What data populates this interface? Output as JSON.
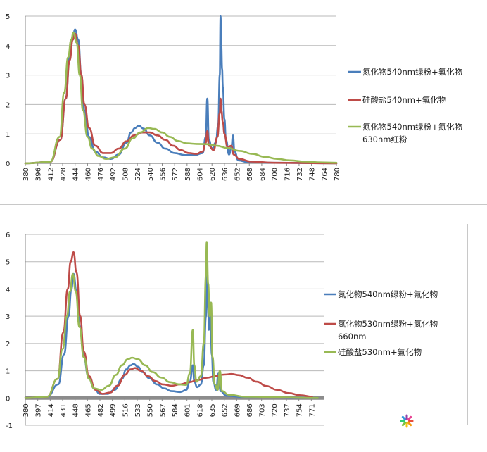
{
  "chart_data": [
    {
      "type": "line",
      "ylim": [
        0,
        5
      ],
      "yticks": [
        0,
        1,
        2,
        3,
        4,
        5
      ],
      "xlim": [
        380,
        780
      ],
      "xticks": [
        380,
        396,
        412,
        428,
        444,
        460,
        476,
        492,
        508,
        524,
        540,
        556,
        572,
        588,
        604,
        620,
        636,
        652,
        668,
        684,
        700,
        716,
        732,
        748,
        764,
        780
      ],
      "grid": true,
      "legend": "right",
      "series": [
        {
          "name": "氮化物540nm绿粉+氟化物",
          "color": "#4a7ebb",
          "points": [
            [
              380,
              0
            ],
            [
              412,
              0.05
            ],
            [
              425,
              0.8
            ],
            [
              432,
              2.2
            ],
            [
              437,
              3.6
            ],
            [
              441,
              4.3
            ],
            [
              444,
              4.55
            ],
            [
              448,
              4.2
            ],
            [
              452,
              3.0
            ],
            [
              456,
              1.8
            ],
            [
              462,
              0.9
            ],
            [
              470,
              0.4
            ],
            [
              480,
              0.2
            ],
            [
              490,
              0.15
            ],
            [
              500,
              0.3
            ],
            [
              510,
              0.7
            ],
            [
              516,
              1.05
            ],
            [
              521,
              1.2
            ],
            [
              526,
              1.28
            ],
            [
              532,
              1.18
            ],
            [
              540,
              0.95
            ],
            [
              550,
              0.7
            ],
            [
              560,
              0.5
            ],
            [
              572,
              0.35
            ],
            [
              585,
              0.28
            ],
            [
              598,
              0.28
            ],
            [
              608,
              0.35
            ],
            [
              612,
              0.9
            ],
            [
              614,
              2.2
            ],
            [
              616,
              0.8
            ],
            [
              620,
              0.5
            ],
            [
              625,
              0.7
            ],
            [
              628,
              1.3
            ],
            [
              630,
              3.0
            ],
            [
              631,
              5.0
            ],
            [
              632,
              4.0
            ],
            [
              633,
              3.2
            ],
            [
              634,
              2.6
            ],
            [
              636,
              1.5
            ],
            [
              638,
              0.8
            ],
            [
              642,
              0.3
            ],
            [
              645,
              0.55
            ],
            [
              647,
              0.95
            ],
            [
              649,
              0.4
            ],
            [
              654,
              0.1
            ],
            [
              665,
              0.05
            ],
            [
              700,
              0.02
            ],
            [
              780,
              0
            ]
          ]
        },
        {
          "name": "硅酸盐540nm+氟化物",
          "color": "#be4b48",
          "points": [
            [
              380,
              0
            ],
            [
              412,
              0.05
            ],
            [
              425,
              0.8
            ],
            [
              432,
              2.2
            ],
            [
              437,
              3.5
            ],
            [
              441,
              4.2
            ],
            [
              444,
              4.4
            ],
            [
              448,
              4.0
            ],
            [
              452,
              3.0
            ],
            [
              456,
              2.0
            ],
            [
              462,
              1.2
            ],
            [
              470,
              0.6
            ],
            [
              480,
              0.35
            ],
            [
              490,
              0.35
            ],
            [
              500,
              0.5
            ],
            [
              510,
              0.75
            ],
            [
              520,
              0.95
            ],
            [
              530,
              1.05
            ],
            [
              540,
              1.05
            ],
            [
              550,
              0.95
            ],
            [
              560,
              0.8
            ],
            [
              570,
              0.6
            ],
            [
              580,
              0.45
            ],
            [
              590,
              0.35
            ],
            [
              600,
              0.32
            ],
            [
              608,
              0.4
            ],
            [
              612,
              0.7
            ],
            [
              614,
              1.1
            ],
            [
              616,
              0.6
            ],
            [
              622,
              0.45
            ],
            [
              627,
              0.9
            ],
            [
              630,
              1.7
            ],
            [
              631,
              2.2
            ],
            [
              632,
              1.8
            ],
            [
              634,
              1.4
            ],
            [
              636,
              1.0
            ],
            [
              640,
              0.55
            ],
            [
              645,
              0.6
            ],
            [
              648,
              0.3
            ],
            [
              655,
              0.15
            ],
            [
              670,
              0.06
            ],
            [
              700,
              0.02
            ],
            [
              780,
              0
            ]
          ]
        },
        {
          "name": "氮化物540nm绿粉+氮化物630nm红粉",
          "color": "#98b954",
          "points": [
            [
              380,
              0
            ],
            [
              412,
              0.05
            ],
            [
              424,
              0.9
            ],
            [
              430,
              2.4
            ],
            [
              435,
              3.6
            ],
            [
              439,
              4.2
            ],
            [
              442,
              4.45
            ],
            [
              446,
              4.1
            ],
            [
              450,
              3.0
            ],
            [
              454,
              1.8
            ],
            [
              460,
              0.9
            ],
            [
              466,
              0.5
            ],
            [
              474,
              0.25
            ],
            [
              484,
              0.15
            ],
            [
              495,
              0.2
            ],
            [
              508,
              0.5
            ],
            [
              518,
              0.85
            ],
            [
              528,
              1.05
            ],
            [
              538,
              1.2
            ],
            [
              546,
              1.17
            ],
            [
              556,
              1.05
            ],
            [
              566,
              0.9
            ],
            [
              576,
              0.76
            ],
            [
              588,
              0.68
            ],
            [
              600,
              0.66
            ],
            [
              614,
              0.65
            ],
            [
              626,
              0.6
            ],
            [
              640,
              0.52
            ],
            [
              656,
              0.42
            ],
            [
              672,
              0.32
            ],
            [
              688,
              0.22
            ],
            [
              704,
              0.15
            ],
            [
              720,
              0.1
            ],
            [
              740,
              0.06
            ],
            [
              760,
              0.03
            ],
            [
              780,
              0.02
            ]
          ]
        }
      ]
    },
    {
      "type": "line",
      "ylim": [
        -1,
        6
      ],
      "yticks": [
        -1,
        0,
        1,
        2,
        3,
        4,
        5,
        6
      ],
      "xlim": [
        380,
        788
      ],
      "xticks": [
        380,
        397,
        414,
        431,
        448,
        465,
        482,
        499,
        516,
        533,
        550,
        567,
        584,
        601,
        618,
        635,
        652,
        669,
        686,
        703,
        720,
        737,
        754,
        771
      ],
      "grid": true,
      "legend": "right",
      "series": [
        {
          "name": "氮化物540nm绿粉+氟化物",
          "color": "#4a7ebb",
          "points": [
            [
              380,
              0
            ],
            [
              410,
              0.05
            ],
            [
              425,
              0.5
            ],
            [
              433,
              1.6
            ],
            [
              439,
              3.0
            ],
            [
              443,
              4.0
            ],
            [
              446,
              4.55
            ],
            [
              450,
              3.9
            ],
            [
              455,
              2.6
            ],
            [
              460,
              1.5
            ],
            [
              466,
              0.8
            ],
            [
              474,
              0.35
            ],
            [
              482,
              0.15
            ],
            [
              492,
              0.15
            ],
            [
              502,
              0.3
            ],
            [
              512,
              0.7
            ],
            [
              518,
              1.05
            ],
            [
              524,
              1.2
            ],
            [
              528,
              1.25
            ],
            [
              534,
              1.15
            ],
            [
              540,
              0.95
            ],
            [
              550,
              0.72
            ],
            [
              560,
              0.5
            ],
            [
              570,
              0.35
            ],
            [
              580,
              0.25
            ],
            [
              592,
              0.22
            ],
            [
              600,
              0.3
            ],
            [
              605,
              0.6
            ],
            [
              609,
              1.2
            ],
            [
              611,
              0.6
            ],
            [
              615,
              0.4
            ],
            [
              620,
              0.5
            ],
            [
              624,
              1.2
            ],
            [
              627,
              3.0
            ],
            [
              629,
              4.5
            ],
            [
              630,
              3.4
            ],
            [
              631,
              2.5
            ],
            [
              633,
              3.5
            ],
            [
              635,
              1.6
            ],
            [
              637,
              0.6
            ],
            [
              641,
              0.3
            ],
            [
              644,
              0.9
            ],
            [
              647,
              0.25
            ],
            [
              655,
              0.08
            ],
            [
              680,
              0.03
            ],
            [
              780,
              0
            ]
          ]
        },
        {
          "name": "氮化物530nm绿粉+氮化物660nm",
          "color": "#be4b48",
          "points": [
            [
              380,
              0
            ],
            [
              410,
              0.05
            ],
            [
              424,
              0.7
            ],
            [
              432,
              2.4
            ],
            [
              438,
              4.0
            ],
            [
              442,
              5.0
            ],
            [
              446,
              5.35
            ],
            [
              450,
              4.6
            ],
            [
              455,
              3.0
            ],
            [
              460,
              1.7
            ],
            [
              467,
              0.8
            ],
            [
              476,
              0.3
            ],
            [
              486,
              0.15
            ],
            [
              496,
              0.2
            ],
            [
              506,
              0.45
            ],
            [
              516,
              0.85
            ],
            [
              524,
              1.05
            ],
            [
              530,
              1.1
            ],
            [
              538,
              1.0
            ],
            [
              548,
              0.8
            ],
            [
              558,
              0.62
            ],
            [
              568,
              0.5
            ],
            [
              580,
              0.45
            ],
            [
              592,
              0.5
            ],
            [
              604,
              0.58
            ],
            [
              616,
              0.66
            ],
            [
              628,
              0.74
            ],
            [
              640,
              0.8
            ],
            [
              652,
              0.86
            ],
            [
              662,
              0.88
            ],
            [
              672,
              0.84
            ],
            [
              684,
              0.74
            ],
            [
              696,
              0.6
            ],
            [
              710,
              0.44
            ],
            [
              724,
              0.3
            ],
            [
              740,
              0.18
            ],
            [
              756,
              0.1
            ],
            [
              772,
              0.05
            ]
          ]
        },
        {
          "name": "硅酸盐530nm+氟化物",
          "color": "#98b954",
          "points": [
            [
              380,
              0
            ],
            [
              410,
              0.05
            ],
            [
              424,
              0.7
            ],
            [
              431,
              1.8
            ],
            [
              437,
              3.0
            ],
            [
              441,
              3.9
            ],
            [
              445,
              4.55
            ],
            [
              449,
              3.9
            ],
            [
              454,
              2.6
            ],
            [
              460,
              1.5
            ],
            [
              467,
              0.7
            ],
            [
              474,
              0.35
            ],
            [
              484,
              0.3
            ],
            [
              494,
              0.45
            ],
            [
              504,
              0.85
            ],
            [
              512,
              1.2
            ],
            [
              520,
              1.42
            ],
            [
              526,
              1.48
            ],
            [
              534,
              1.42
            ],
            [
              544,
              1.2
            ],
            [
              554,
              0.95
            ],
            [
              566,
              0.75
            ],
            [
              578,
              0.58
            ],
            [
              590,
              0.5
            ],
            [
              600,
              0.48
            ],
            [
              605,
              0.9
            ],
            [
              609,
              2.5
            ],
            [
              611,
              1.2
            ],
            [
              614,
              0.6
            ],
            [
              620,
              0.8
            ],
            [
              624,
              2.0
            ],
            [
              627,
              4.5
            ],
            [
              628,
              5.7
            ],
            [
              630,
              4.2
            ],
            [
              632,
              3.0
            ],
            [
              634,
              3.5
            ],
            [
              636,
              1.5
            ],
            [
              639,
              0.5
            ],
            [
              643,
              0.3
            ],
            [
              646,
              1.0
            ],
            [
              649,
              0.25
            ],
            [
              658,
              0.12
            ],
            [
              680,
              0.05
            ],
            [
              780,
              0
            ]
          ]
        }
      ]
    }
  ]
}
